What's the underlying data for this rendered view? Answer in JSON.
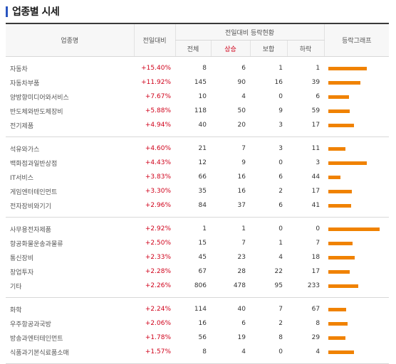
{
  "title": "업종별 시세",
  "headers": {
    "name": "업종명",
    "change": "전일대비",
    "stat_group": "전일대비 등락현황",
    "total": "전체",
    "up": "상승",
    "flat": "보합",
    "down": "하락",
    "graph": "등락그래프"
  },
  "bar_color": "#f08200",
  "max_up_ratio": 1.0,
  "groups": [
    [
      {
        "name": "자동차",
        "change": "+15.40%",
        "total": "8",
        "up": "6",
        "flat": "1",
        "down": "1",
        "ratio": 0.75
      },
      {
        "name": "자동차부품",
        "change": "+11.92%",
        "total": "145",
        "up": "90",
        "flat": "16",
        "down": "39",
        "ratio": 0.62
      },
      {
        "name": "양방향미디어와서비스",
        "change": "+7.67%",
        "total": "10",
        "up": "4",
        "flat": "0",
        "down": "6",
        "ratio": 0.4
      },
      {
        "name": "반도체와반도체장비",
        "change": "+5.88%",
        "total": "118",
        "up": "50",
        "flat": "9",
        "down": "59",
        "ratio": 0.42
      },
      {
        "name": "전기제품",
        "change": "+4.94%",
        "total": "40",
        "up": "20",
        "flat": "3",
        "down": "17",
        "ratio": 0.5
      }
    ],
    [
      {
        "name": "석유와가스",
        "change": "+4.60%",
        "total": "21",
        "up": "7",
        "flat": "3",
        "down": "11",
        "ratio": 0.33
      },
      {
        "name": "백화점과일반상점",
        "change": "+4.43%",
        "total": "12",
        "up": "9",
        "flat": "0",
        "down": "3",
        "ratio": 0.75
      },
      {
        "name": "IT서비스",
        "change": "+3.83%",
        "total": "66",
        "up": "16",
        "flat": "6",
        "down": "44",
        "ratio": 0.24
      },
      {
        "name": "게임엔터테인먼트",
        "change": "+3.30%",
        "total": "35",
        "up": "16",
        "flat": "2",
        "down": "17",
        "ratio": 0.46
      },
      {
        "name": "전자장비와기기",
        "change": "+2.96%",
        "total": "84",
        "up": "37",
        "flat": "6",
        "down": "41",
        "ratio": 0.44
      }
    ],
    [
      {
        "name": "사무용전자제품",
        "change": "+2.92%",
        "total": "1",
        "up": "1",
        "flat": "0",
        "down": "0",
        "ratio": 1.0
      },
      {
        "name": "항공화물운송과물류",
        "change": "+2.50%",
        "total": "15",
        "up": "7",
        "flat": "1",
        "down": "7",
        "ratio": 0.47
      },
      {
        "name": "통신장비",
        "change": "+2.33%",
        "total": "45",
        "up": "23",
        "flat": "4",
        "down": "18",
        "ratio": 0.51
      },
      {
        "name": "창업투자",
        "change": "+2.28%",
        "total": "67",
        "up": "28",
        "flat": "22",
        "down": "17",
        "ratio": 0.42
      },
      {
        "name": "기타",
        "change": "+2.26%",
        "total": "806",
        "up": "478",
        "flat": "95",
        "down": "233",
        "ratio": 0.59
      }
    ],
    [
      {
        "name": "화학",
        "change": "+2.24%",
        "total": "114",
        "up": "40",
        "flat": "7",
        "down": "67",
        "ratio": 0.35
      },
      {
        "name": "우주항공과국방",
        "change": "+2.06%",
        "total": "16",
        "up": "6",
        "flat": "2",
        "down": "8",
        "ratio": 0.38
      },
      {
        "name": "방송과엔터테인먼트",
        "change": "+1.78%",
        "total": "56",
        "up": "19",
        "flat": "8",
        "down": "29",
        "ratio": 0.34
      },
      {
        "name": "식품과기본식료품소매",
        "change": "+1.57%",
        "total": "8",
        "up": "4",
        "flat": "0",
        "down": "4",
        "ratio": 0.5
      }
    ]
  ]
}
